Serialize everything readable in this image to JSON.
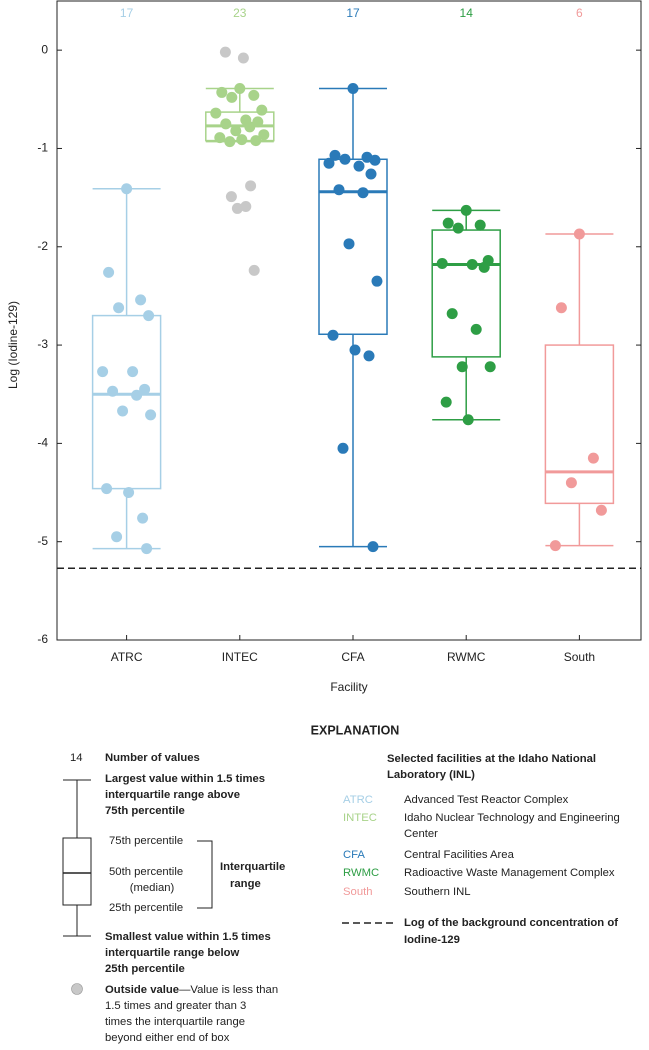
{
  "chart_data": {
    "type": "box",
    "y_label": "Log (Iodine-129)",
    "x_label": "Facility",
    "ylim": [
      -6,
      0.5
    ],
    "yticks": [
      -6,
      -5,
      -4,
      -3,
      -2,
      -1,
      0
    ],
    "categories": [
      "ATRC",
      "INTEC",
      "CFA",
      "RWMC",
      "South"
    ],
    "background_level": -5.27,
    "outlier_color": "#c8c8c8",
    "boxes": [
      {
        "color": "#a6cfe6",
        "count": 17,
        "whisker_high": -1.41,
        "q3": -2.7,
        "median": -3.5,
        "q1": -4.46,
        "whisker_low": -5.07,
        "points": [
          -1.41,
          -2.26,
          -2.54,
          -2.62,
          -2.7,
          -3.27,
          -3.27,
          -3.45,
          -3.47,
          -3.51,
          -3.67,
          -3.71,
          -4.46,
          -4.5,
          -4.76,
          -4.95,
          -5.07
        ],
        "outliers": []
      },
      {
        "color": "#a8d38a",
        "count": 23,
        "whisker_high": -0.39,
        "q3": -0.63,
        "median": -0.77,
        "q1": -0.92,
        "whisker_low": -0.93,
        "points": [
          -0.39,
          -0.43,
          -0.46,
          -0.48,
          -0.61,
          -0.64,
          -0.71,
          -0.73,
          -0.75,
          -0.78,
          -0.82,
          -0.86,
          -0.89,
          -0.91,
          -0.92,
          -0.93
        ],
        "outliers": [
          -0.02,
          -0.08,
          -1.38,
          -1.49,
          -1.59,
          -1.61,
          -2.24
        ]
      },
      {
        "color": "#2a7ab8",
        "count": 17,
        "whisker_high": -0.39,
        "q3": -1.11,
        "median": -1.44,
        "q1": -2.89,
        "whisker_low": -5.05,
        "points": [
          -0.39,
          -1.07,
          -1.09,
          -1.11,
          -1.12,
          -1.15,
          -1.18,
          -1.26,
          -1.42,
          -1.45,
          -1.97,
          -2.35,
          -2.9,
          -3.05,
          -3.11,
          -4.05,
          -5.05
        ],
        "outliers": []
      },
      {
        "color": "#2e9e45",
        "count": 14,
        "whisker_high": -1.63,
        "q3": -1.83,
        "median": -2.18,
        "q1": -3.12,
        "whisker_low": -3.76,
        "points": [
          -1.63,
          -1.76,
          -1.78,
          -1.81,
          -2.14,
          -2.17,
          -2.18,
          -2.21,
          -2.68,
          -2.84,
          -3.22,
          -3.22,
          -3.58,
          -3.76
        ],
        "outliers": []
      },
      {
        "color": "#f19a9a",
        "count": 6,
        "whisker_high": -1.87,
        "q3": -3.0,
        "median": -4.29,
        "q1": -4.61,
        "whisker_low": -5.04,
        "points": [
          -1.87,
          -2.62,
          -4.15,
          -4.4,
          -4.68,
          -5.04
        ],
        "outliers": []
      }
    ]
  },
  "explanation": {
    "title": "EXPLANATION",
    "count_example": "14",
    "number_of_values": "Number of values",
    "largest": [
      "Largest value within 1.5 times",
      "interquartile range above",
      "75th percentile"
    ],
    "p75": "75th percentile",
    "p50": [
      "50th percentile",
      "(median)"
    ],
    "p25": "25th percentile",
    "iqr": [
      "Interquartile",
      "range"
    ],
    "smallest": [
      "Smallest value within 1.5 times",
      "interquartile range below",
      "25th percentile"
    ],
    "outside_title": "Outside value",
    "outside_text": [
      "—Value is less than",
      "1.5 times and greater than 3",
      "times the interquartile range",
      "beyond either end of box"
    ],
    "facilities_heading": [
      "Selected facilities at the Idaho National",
      "Laboratory (INL)"
    ],
    "facilities": [
      {
        "abbr": "ATRC",
        "name": [
          "Advanced Test Reactor Complex"
        ]
      },
      {
        "abbr": "INTEC",
        "name": [
          "Idaho Nuclear Technology and Engineering",
          "Center"
        ]
      },
      {
        "abbr": "CFA",
        "name": [
          "Central Facilities Area"
        ]
      },
      {
        "abbr": "RWMC",
        "name": [
          "Radioactive Waste Management Complex"
        ]
      },
      {
        "abbr": "South",
        "name": [
          "Southern INL"
        ]
      }
    ],
    "background_label": [
      "Log of the background concentration of",
      "Iodine-129"
    ]
  }
}
